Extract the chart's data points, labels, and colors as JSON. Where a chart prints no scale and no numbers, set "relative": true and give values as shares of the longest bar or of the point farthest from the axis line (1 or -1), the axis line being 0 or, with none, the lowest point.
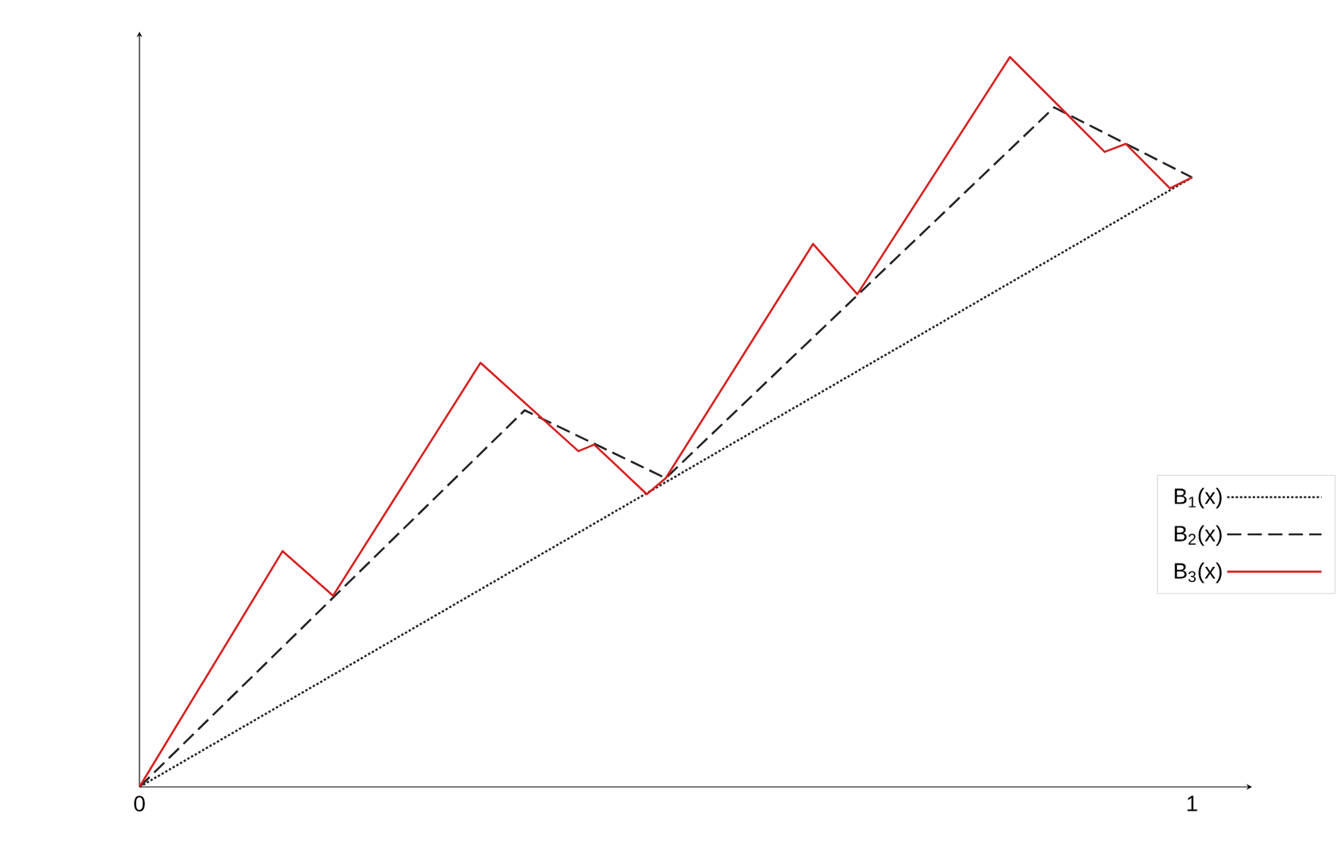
{
  "chart_data": {
    "type": "line",
    "relative": true,
    "xlim": [
      0,
      1.057
    ],
    "xticks": [
      0,
      1
    ],
    "legend": "right",
    "grid": false,
    "series": [
      {
        "name": "B$_{1}$(x)",
        "color": "#222222",
        "line_style": "dotted",
        "x": [
          0,
          1
        ],
        "values": [
          0,
          0.835
        ]
      },
      {
        "name": "B$_{2}$(x)",
        "color": "#222222",
        "line_style": "dashed",
        "x": [
          0,
          0.366,
          0.5,
          0.869,
          1
        ],
        "values": [
          0,
          0.516,
          0.423,
          0.931,
          0.835
        ]
      },
      {
        "name": "B$_{3}$(x)",
        "color": "#d62020",
        "line_style": "solid",
        "x": [
          0,
          0.136,
          0.184,
          0.324,
          0.417,
          0.432,
          0.482,
          0.5,
          0.64,
          0.682,
          0.827,
          0.917,
          0.937,
          0.979,
          1
        ],
        "values": [
          0,
          0.323,
          0.262,
          0.581,
          0.46,
          0.469,
          0.401,
          0.423,
          0.744,
          0.675,
          1,
          0.87,
          0.881,
          0.82,
          0.835
        ]
      }
    ]
  }
}
